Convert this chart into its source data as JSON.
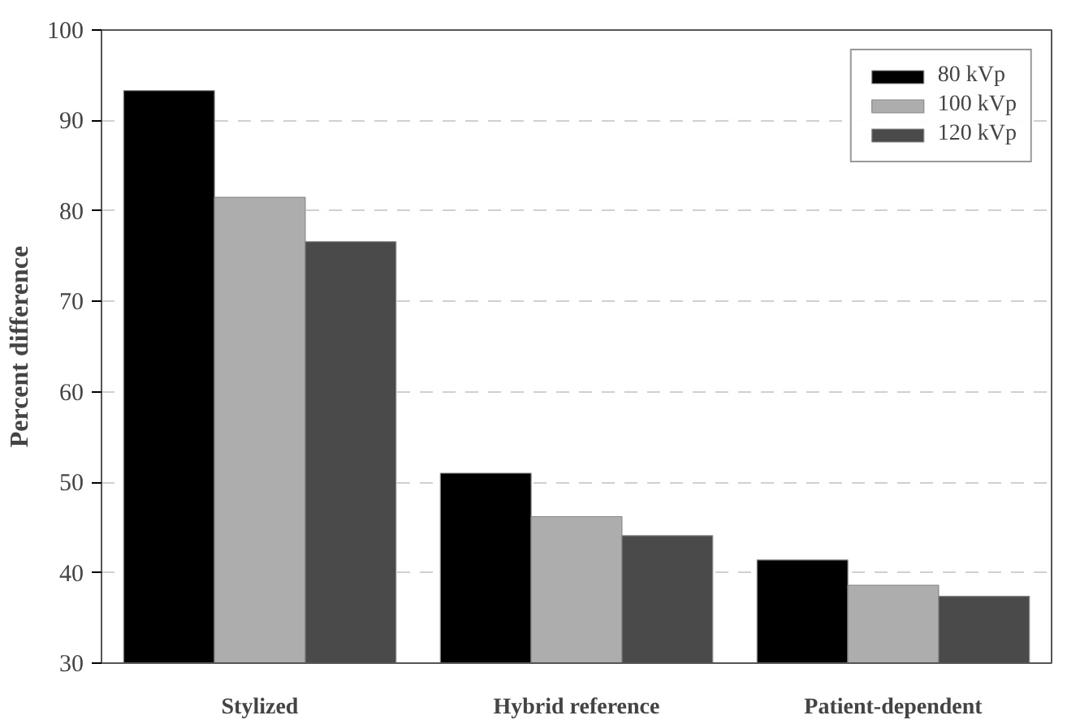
{
  "chart_data": {
    "type": "bar",
    "ylabel": "Percent difference",
    "categories": [
      "Stylized",
      "Hybrid reference",
      "Patient-dependent"
    ],
    "series": [
      {
        "name": "80 kVp",
        "color": "#000000",
        "values": [
          93.3,
          51.0,
          41.4
        ]
      },
      {
        "name": "100 kVp",
        "color": "#adadad",
        "values": [
          81.5,
          46.2,
          38.6
        ]
      },
      {
        "name": "120 kVp",
        "color": "#4a4a4a",
        "values": [
          76.6,
          44.1,
          37.4
        ]
      }
    ],
    "ylim": [
      30,
      100
    ],
    "yticks": [
      30,
      40,
      50,
      60,
      70,
      80,
      90,
      100
    ],
    "grid": "y",
    "legend": "top right"
  }
}
